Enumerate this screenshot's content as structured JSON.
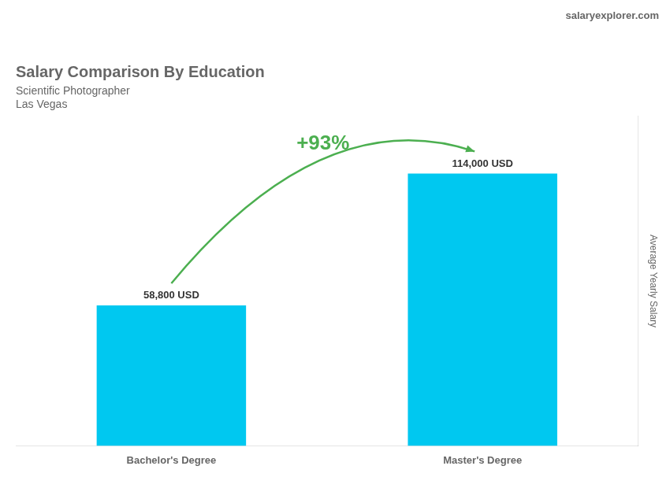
{
  "chart_data": {
    "type": "bar",
    "title": "Salary Comparison By Education",
    "subtitle": [
      "Scientific Photographer",
      "Las Vegas"
    ],
    "categories": [
      "Bachelor's Degree",
      "Master's Degree"
    ],
    "values": [
      58800,
      114000
    ],
    "value_labels": [
      "58,800 USD",
      "114,000 USD"
    ],
    "data_labels": true,
    "color": "#00C8F0",
    "ylabel": "Average Yearly Salary",
    "ylim": [
      0,
      138000
    ],
    "tick_labels": "x",
    "grid": false,
    "annotations": [
      {
        "text": "+93%",
        "from": "Bachelor's Degree",
        "to": "Master's Degree"
      },
      {
        "text": "salaryexplorer.com"
      }
    ]
  }
}
